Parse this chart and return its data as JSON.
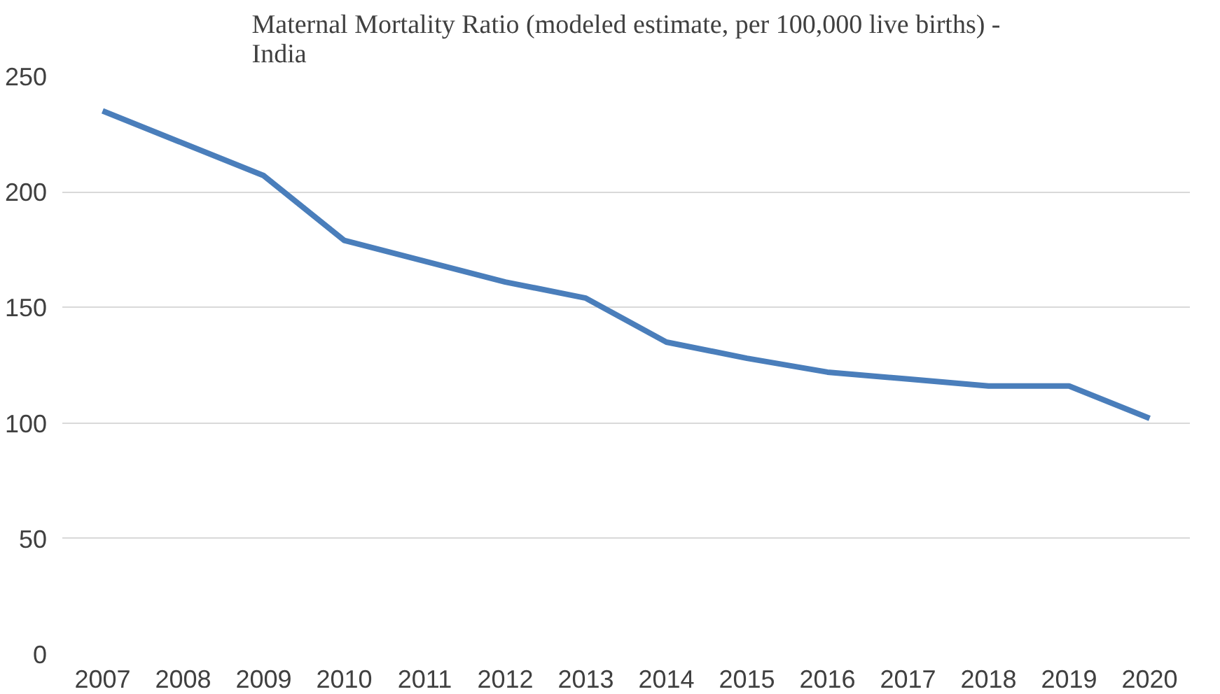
{
  "chart_data": {
    "type": "line",
    "title": "Maternal Mortality Ratio (modeled estimate, per 100,000 live births) - India",
    "categories": [
      "2007",
      "2008",
      "2009",
      "2010",
      "2011",
      "2012",
      "2013",
      "2014",
      "2015",
      "2016",
      "2017",
      "2018",
      "2019",
      "2020"
    ],
    "series": [
      {
        "color": "#4a7ebb",
        "values": [
          235,
          221,
          207,
          179,
          170,
          161,
          154,
          135,
          128,
          122,
          119,
          116,
          116,
          102
        ]
      }
    ],
    "ylim": [
      0,
      250
    ],
    "yticks": [
      0,
      50,
      100,
      150,
      200,
      250
    ],
    "grid": "y",
    "marker": "none",
    "line_style": "solid"
  }
}
